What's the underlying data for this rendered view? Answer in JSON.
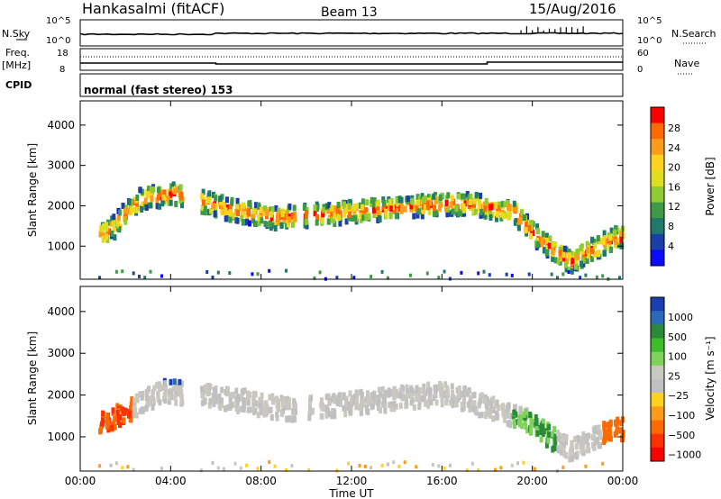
{
  "header": {
    "station": "Hankasalmi (fitACF)",
    "beam": "Beam 13",
    "date": "15/Aug/2016"
  },
  "status_panels": {
    "nsky_label": "N.Sky",
    "nsearch_label": "N.Search",
    "noise_ticks": [
      "10^5",
      "10^0"
    ],
    "freq_label": "Freq.",
    "freq_unit": "[MHz]",
    "freq_ticks": [
      "18",
      "8"
    ],
    "nave_label": "Nave",
    "nave_ticks": [
      "60",
      "0"
    ],
    "cpid_label": "CPID",
    "cpid_value": "normal (fast stereo) 153"
  },
  "power_scale": {
    "label": "Power [dB]",
    "ticks": [
      "28",
      "24",
      "20",
      "16",
      "12",
      "8",
      "4"
    ],
    "colors": [
      "#ff0000",
      "#ff6a00",
      "#ff9b1a",
      "#ffd21e",
      "#dede1e",
      "#8fcb32",
      "#3f9a48",
      "#1f7a6a",
      "#1a3fa8",
      "#0a0aff"
    ]
  },
  "velocity_scale": {
    "label": "Velocity [m s⁻¹]",
    "ticks": [
      "1000",
      "500",
      "100",
      "25",
      "−25",
      "−100",
      "−500",
      "−1000"
    ],
    "colors": [
      "#1a3fb0",
      "#2a6ab8",
      "#2a8a3a",
      "#3dbd2a",
      "#7fd35a",
      "#c8c8c0",
      "#c0c0c0",
      "#ffd21e",
      "#ff9b1a",
      "#ff6a00",
      "#ff3000",
      "#ff0000"
    ]
  },
  "chart_data": {
    "type": "heatmap",
    "x_ticks": [
      "00:00",
      "04:00",
      "08:00",
      "12:00",
      "16:00",
      "20:00",
      "00:00"
    ],
    "xlabel": "Time UT",
    "xlim_hours": [
      0,
      24
    ],
    "ylabel": "Slant Range [km]",
    "y_ticks": [
      1000,
      2000,
      3000,
      4000
    ],
    "ylim_km": [
      180,
      4600
    ],
    "power_echo_track": [
      {
        "h": 1.0,
        "km": 1300
      },
      {
        "h": 2.5,
        "km": 2150
      },
      {
        "h": 4.0,
        "km": 2300
      },
      {
        "h": 6.5,
        "km": 1900
      },
      {
        "h": 8.5,
        "km": 1700
      },
      {
        "h": 12.0,
        "km": 1850
      },
      {
        "h": 15.0,
        "km": 2000
      },
      {
        "h": 17.0,
        "km": 2050
      },
      {
        "h": 19.0,
        "km": 1850
      },
      {
        "h": 20.0,
        "km": 1250
      },
      {
        "h": 21.5,
        "km": 600
      },
      {
        "h": 23.5,
        "km": 1200
      }
    ],
    "velocity_echo_track": [
      {
        "h": 1.0,
        "km": 1350
      },
      {
        "h": 3.5,
        "km": 2100
      },
      {
        "h": 6.5,
        "km": 1900
      },
      {
        "h": 9.0,
        "km": 1650
      },
      {
        "h": 12.0,
        "km": 1800
      },
      {
        "h": 16.0,
        "km": 2050
      },
      {
        "h": 19.5,
        "km": 1400
      },
      {
        "h": 21.5,
        "km": 700
      },
      {
        "h": 23.5,
        "km": 1200
      }
    ]
  }
}
